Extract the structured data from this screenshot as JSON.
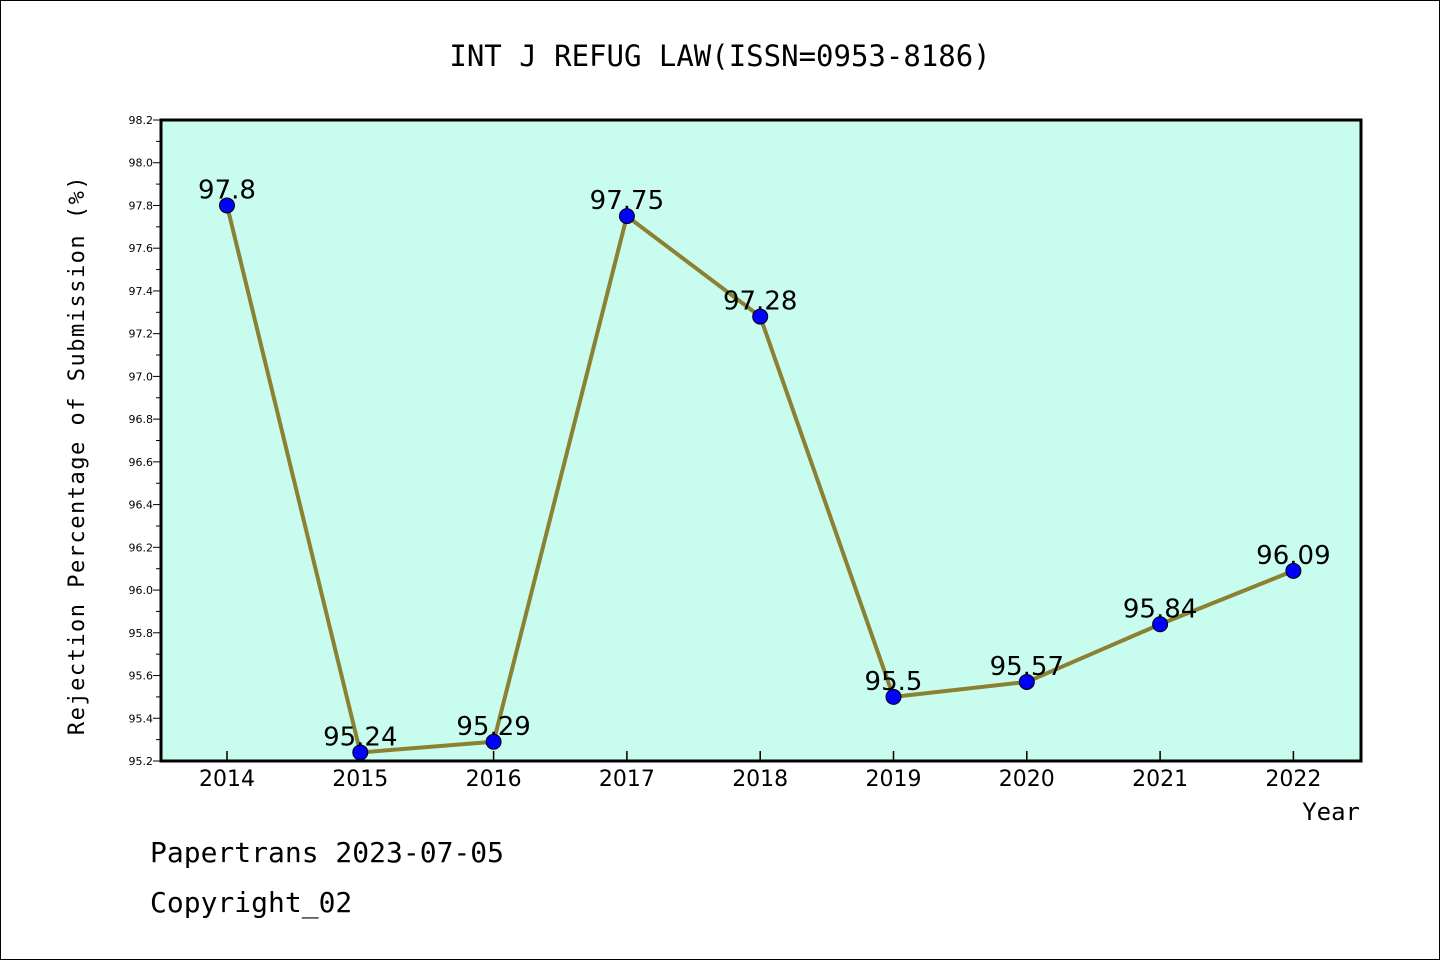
{
  "chart_data": {
    "type": "line",
    "title": "INT J REFUG LAW(ISSN=0953-8186)",
    "xlabel": "Year",
    "ylabel": "Rejection Percentage of Submission (%)",
    "categories": [
      "2014",
      "2015",
      "2016",
      "2017",
      "2018",
      "2019",
      "2020",
      "2021",
      "2022"
    ],
    "values": [
      97.8,
      95.24,
      95.29,
      97.75,
      97.28,
      95.5,
      95.57,
      95.84,
      96.09
    ],
    "data_labels": [
      "97.8",
      "95.24",
      "95.29",
      "97.75",
      "97.28",
      "95.5",
      "95.57",
      "95.84",
      "96.09"
    ],
    "ylim": [
      95.2,
      98.2
    ],
    "yticks": [
      "95.2",
      "95.4",
      "95.6",
      "95.8",
      "96.0",
      "96.2",
      "96.4",
      "96.6",
      "96.8",
      "97.0",
      "97.2",
      "97.4",
      "97.6",
      "97.8",
      "98.0",
      "98.2"
    ],
    "grid": false,
    "colors": {
      "plot_background": "#c8fcee",
      "line": "#8b8133",
      "marker": "#0000ff"
    }
  },
  "footer": {
    "source": "Papertrans 2023-07-05",
    "copyright": "Copyright_02"
  }
}
